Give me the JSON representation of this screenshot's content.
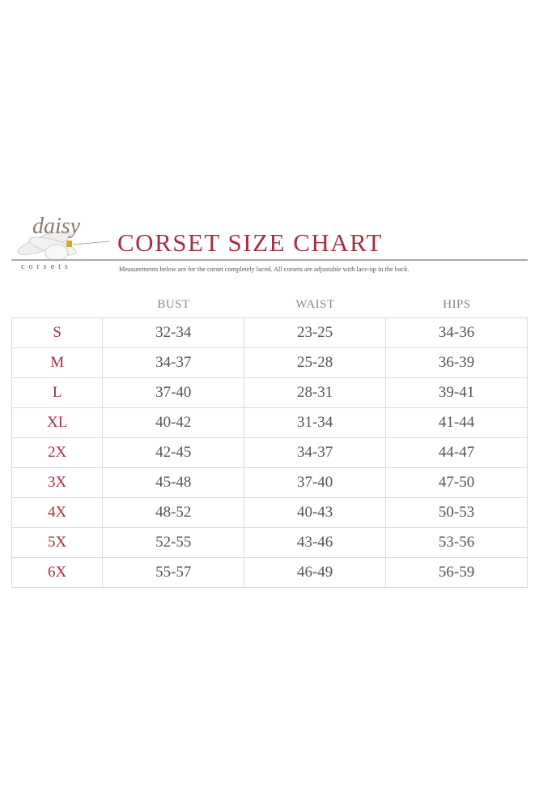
{
  "logo": {
    "script": "daisy",
    "sub": "corsets",
    "accent_color": "#d4a72c"
  },
  "title": "CORSET SIZE CHART",
  "subtitle": "Measurements below are for the corset completely laced.  All corsets are adjustable with lace-up in the back.",
  "columns": [
    "BUST",
    "WAIST",
    "HIPS"
  ],
  "rows": [
    {
      "size": "S",
      "bust": "32-34",
      "waist": "23-25",
      "hips": "34-36"
    },
    {
      "size": "M",
      "bust": "34-37",
      "waist": "25-28",
      "hips": "36-39"
    },
    {
      "size": "L",
      "bust": "37-40",
      "waist": "28-31",
      "hips": "39-41"
    },
    {
      "size": "XL",
      "bust": "40-42",
      "waist": "31-34",
      "hips": "41-44"
    },
    {
      "size": "2X",
      "bust": "42-45",
      "waist": "34-37",
      "hips": "44-47"
    },
    {
      "size": "3X",
      "bust": "45-48",
      "waist": "37-40",
      "hips": "47-50"
    },
    {
      "size": "4X",
      "bust": "48-52",
      "waist": "40-43",
      "hips": "50-53"
    },
    {
      "size": "5X",
      "bust": "52-55",
      "waist": "43-46",
      "hips": "53-56"
    },
    {
      "size": "6X",
      "bust": "55-57",
      "waist": "46-49",
      "hips": "56-59"
    }
  ],
  "colors": {
    "title": "#a5303f",
    "text": "#555555",
    "grid": "#dcdcdc"
  }
}
